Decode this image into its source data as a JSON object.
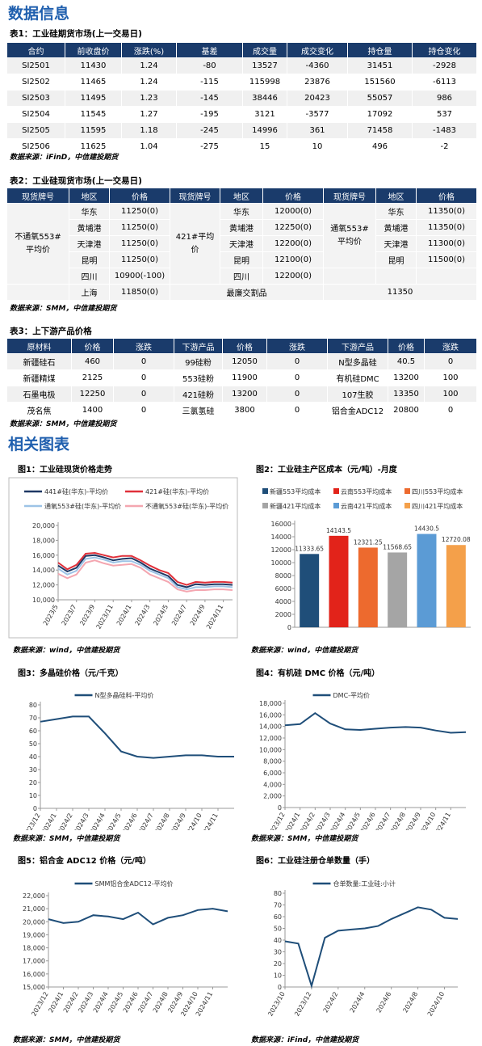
{
  "header": {
    "title": "数据信息"
  },
  "table1": {
    "title": "表1：工业硅期货市场(上一交易日)",
    "columns": [
      "合约",
      "前收盘价",
      "涨跌(%)",
      "基差",
      "成交量",
      "成交变化",
      "持仓量",
      "持仓变化"
    ],
    "rows": [
      [
        "SI2501",
        "11430",
        "1.24",
        "-80",
        "13527",
        "-4360",
        "31451",
        "-2928"
      ],
      [
        "SI2502",
        "11465",
        "1.24",
        "-115",
        "115998",
        "23876",
        "151560",
        "-6113"
      ],
      [
        "SI2503",
        "11495",
        "1.23",
        "-145",
        "38446",
        "20423",
        "55057",
        "986"
      ],
      [
        "SI2504",
        "11545",
        "1.27",
        "-195",
        "3121",
        "-3577",
        "17092",
        "537"
      ],
      [
        "SI2505",
        "11595",
        "1.18",
        "-245",
        "14996",
        "361",
        "71458",
        "-1483"
      ],
      [
        "SI2506",
        "11625",
        "1.04",
        "-275",
        "15",
        "10",
        "496",
        "-2"
      ]
    ],
    "source": "数据来源：iFinD，中信建投期货"
  },
  "table2": {
    "title": "表2：工业硅现货市场(上一交易日)",
    "columns": [
      "现货牌号",
      "地区",
      "价格",
      "现货牌号",
      "地区",
      "价格",
      "现货牌号",
      "地区",
      "价格"
    ],
    "groups": [
      {
        "name": "不通氧553#平均价",
        "rows": [
          [
            "华东",
            "11250(0)"
          ],
          [
            "黄埔港",
            "11250(0)"
          ],
          [
            "天津港",
            "11250(0)"
          ],
          [
            "昆明",
            "11250(0)"
          ],
          [
            "四川",
            "10900(-100)"
          ]
        ]
      },
      {
        "name": "421#平均价",
        "rows": [
          [
            "华东",
            "12000(0)"
          ],
          [
            "黄埔港",
            "12250(0)"
          ],
          [
            "天津港",
            "12200(0)"
          ],
          [
            "昆明",
            "12100(0)"
          ],
          [
            "四川",
            "12200(0)"
          ]
        ]
      },
      {
        "name": "通氧553#平均价",
        "rows": [
          [
            "华东",
            "11350(0)"
          ],
          [
            "黄埔港",
            "11350(0)"
          ],
          [
            "天津港",
            "11300(0)"
          ],
          [
            "昆明",
            "11500(0)"
          ]
        ]
      }
    ],
    "last_row": {
      "region": "上海",
      "price": "11850(0)",
      "label": "最廉交割品",
      "value": "11350"
    },
    "source": "数据来源：SMM，中信建投期货"
  },
  "table3": {
    "title": "表3：上下游产品价格",
    "columns": [
      "原材料",
      "价格",
      "涨跌",
      "下游产品",
      "价格",
      "涨跌",
      "下游产品",
      "价格",
      "涨跌"
    ],
    "rows": [
      [
        "新疆硅石",
        "460",
        "0",
        "99硅粉",
        "12050",
        "0",
        "N型多晶硅",
        "40.5",
        "0"
      ],
      [
        "新疆精煤",
        "2125",
        "0",
        "553硅粉",
        "11900",
        "0",
        "有机硅DMC",
        "13200",
        "100"
      ],
      [
        "石墨电极",
        "12250",
        "0",
        "421硅粉",
        "13200",
        "0",
        "107生胶",
        "13350",
        "100"
      ],
      [
        "茂名焦",
        "1400",
        "0",
        "三氯氢硅",
        "3800",
        "0",
        "铝合金ADC12",
        "20800",
        "0"
      ]
    ],
    "source": "数据来源：SMM，中信建投期货"
  },
  "section2": {
    "title": "相关图表"
  },
  "chart_data": [
    {
      "type": "line",
      "title": "图1：工业硅现货价格走势",
      "source": "数据来源：wind，中信建投期货",
      "categories": [
        "2023/5",
        null,
        "2023/7",
        null,
        "2023/9",
        null,
        "2023/11",
        null,
        "2024/1",
        null,
        "2024/3",
        null,
        "2024/5",
        null,
        "2024/7",
        null,
        "2024/9",
        null,
        "2024/11",
        null
      ],
      "series": [
        {
          "name": "441#硅(华东)-平均价",
          "color": "#1f3864",
          "values": [
            14600,
            13800,
            14300,
            15900,
            16000,
            15700,
            15300,
            15500,
            15600,
            15000,
            14200,
            13700,
            13200,
            12000,
            11700,
            12100,
            12000,
            12100,
            12100,
            12000
          ]
        },
        {
          "name": "421#硅(华东)-平均价",
          "color": "#e0303a",
          "values": [
            15000,
            14100,
            14700,
            16200,
            16300,
            16000,
            15700,
            15900,
            15900,
            15300,
            14600,
            14000,
            13600,
            12400,
            12000,
            12400,
            12300,
            12400,
            12400,
            12300
          ]
        },
        {
          "name": "通氧553#硅(华东)-平均价",
          "color": "#9dc3e6",
          "values": [
            14200,
            13400,
            13900,
            15500,
            15700,
            15400,
            15000,
            15200,
            15200,
            14700,
            13900,
            13400,
            12900,
            11700,
            11400,
            11700,
            11700,
            11800,
            11800,
            11700
          ]
        },
        {
          "name": "不通氧553#硅(华东)-平均价",
          "color": "#f4a6b0",
          "values": [
            13500,
            12900,
            13400,
            15000,
            15300,
            14900,
            14600,
            14700,
            14800,
            14300,
            13400,
            12900,
            12400,
            11400,
            11100,
            11300,
            11300,
            11400,
            11400,
            11300
          ]
        }
      ],
      "ylim": [
        10000,
        20000
      ],
      "yticks": [
        {
          "value": 10000,
          "label": "10,000"
        },
        {
          "value": 12000,
          "label": "12,000"
        },
        {
          "value": 14000,
          "label": "14,000"
        },
        {
          "value": 16000,
          "label": "16,000"
        },
        {
          "value": 18000,
          "label": "18,000"
        },
        {
          "value": 20000,
          "label": "20,000"
        }
      ]
    },
    {
      "type": "bar",
      "title": "图2：工业硅主产区成本（元/吨）-月度",
      "source": "数据来源：wind，中信建投期货",
      "series": [
        {
          "name": "新疆553平均成本",
          "color": "#1f4e79",
          "values": [
            11333.65
          ]
        },
        {
          "name": "云南553平均成本",
          "color": "#e2231a",
          "values": [
            14143.5
          ]
        },
        {
          "name": "四川553平均成本",
          "color": "#ed6a2e",
          "values": [
            12321.25
          ]
        },
        {
          "name": "新疆421平均成本",
          "color": "#a5a5a5",
          "values": [
            11568.65
          ]
        },
        {
          "name": "云南421平均成本",
          "color": "#5b9bd5",
          "values": [
            14430.5
          ]
        },
        {
          "name": "四川421平均成本",
          "color": "#f4a04a",
          "values": [
            12720.08
          ]
        }
      ],
      "ylim": [
        0,
        16000
      ],
      "yticks": [
        0,
        2000,
        4000,
        6000,
        8000,
        10000,
        12000,
        14000,
        16000
      ]
    },
    {
      "type": "line",
      "title": "图3：多晶硅价格（元/千克）",
      "source": "数据来源：SMM，中信建投期货",
      "categories": [
        "2023/12",
        "2024/1",
        "2024/2",
        "2024/3",
        "2024/4",
        "2024/5",
        "2024/6",
        "2024/7",
        "2024/8",
        "2024/9",
        "2024/10",
        "2024/11",
        null
      ],
      "series": [
        {
          "name": "N型多晶硅料-平均价",
          "color": "#1f4e79",
          "values": [
            67,
            69,
            71,
            71,
            58,
            44,
            40,
            39,
            40,
            41,
            41,
            40,
            40
          ]
        }
      ],
      "ylim": [
        0,
        80
      ],
      "yticks": [
        0,
        10,
        20,
        30,
        40,
        50,
        60,
        70,
        80
      ]
    },
    {
      "type": "line",
      "title": "图4：有机硅 DMC 价格（元/吨）",
      "source": "数据来源：SMM，中信建投期货",
      "categories": [
        "2023/12",
        "2024/1",
        "2024/2",
        "2024/3",
        "2024/4",
        "2024/5",
        "2024/6",
        "2024/7",
        "2024/8",
        "2024/9",
        "2024/10",
        "2024/11",
        null
      ],
      "series": [
        {
          "name": "DMC-平均价",
          "color": "#1f4e79",
          "values": [
            14200,
            14400,
            16300,
            14500,
            13500,
            13400,
            13600,
            13800,
            13900,
            13800,
            13300,
            12900,
            13000
          ]
        }
      ],
      "ylim": [
        0,
        18000
      ],
      "yticks": [
        {
          "value": 0,
          "label": "0"
        },
        {
          "value": 2000,
          "label": "2,000"
        },
        {
          "value": 4000,
          "label": "4,000"
        },
        {
          "value": 6000,
          "label": "6,000"
        },
        {
          "value": 8000,
          "label": "8,000"
        },
        {
          "value": 10000,
          "label": "10,000"
        },
        {
          "value": 12000,
          "label": "12,000"
        },
        {
          "value": 14000,
          "label": "14,000"
        },
        {
          "value": 16000,
          "label": "16,000"
        },
        {
          "value": 18000,
          "label": "18,000"
        }
      ]
    },
    {
      "type": "line",
      "title": "图5：铝合金 ADC12 价格（元/吨）",
      "source": "数据来源：SMM，中信建投期货",
      "categories": [
        "2023/12",
        "2024/1",
        "2024/2",
        "2024/3",
        "2024/4",
        "2024/5",
        "2024/6",
        "2024/7",
        "2024/8",
        "2024/9",
        "2024/10",
        "2024/11",
        null
      ],
      "series": [
        {
          "name": "SMM铝合金ADC12-平均价",
          "color": "#1f4e79",
          "values": [
            20200,
            19900,
            20000,
            20500,
            20400,
            20200,
            20700,
            19800,
            20300,
            20500,
            20900,
            21000,
            20800
          ]
        }
      ],
      "ylim": [
        15000,
        22000
      ],
      "yticks": [
        {
          "value": 15000,
          "label": "15,000"
        },
        {
          "value": 16000,
          "label": "16,000"
        },
        {
          "value": 17000,
          "label": "17,000"
        },
        {
          "value": 18000,
          "label": "18,000"
        },
        {
          "value": 19000,
          "label": "19,000"
        },
        {
          "value": 20000,
          "label": "20,000"
        },
        {
          "value": 21000,
          "label": "21,000"
        },
        {
          "value": 22000,
          "label": "22,000"
        }
      ]
    },
    {
      "type": "line",
      "title": "图6：工业硅注册仓单数量（手）",
      "source": "数据来源：iFind，中信建投期货",
      "categories": [
        "2023/10",
        null,
        "2023/12",
        null,
        "2024/2",
        null,
        "2024/4",
        null,
        "2024/6",
        null,
        "2024/8",
        null,
        "2024/10",
        null
      ],
      "series": [
        {
          "name": "仓单数量:工业硅:小计",
          "color": "#1f4e79",
          "values": [
            39,
            37,
            1,
            42,
            48,
            49,
            50,
            52,
            58,
            63,
            68,
            66,
            59,
            58
          ]
        }
      ],
      "ylim": [
        0,
        80
      ],
      "yticks": [
        0,
        10,
        20,
        30,
        40,
        50,
        60,
        70,
        80
      ]
    }
  ]
}
